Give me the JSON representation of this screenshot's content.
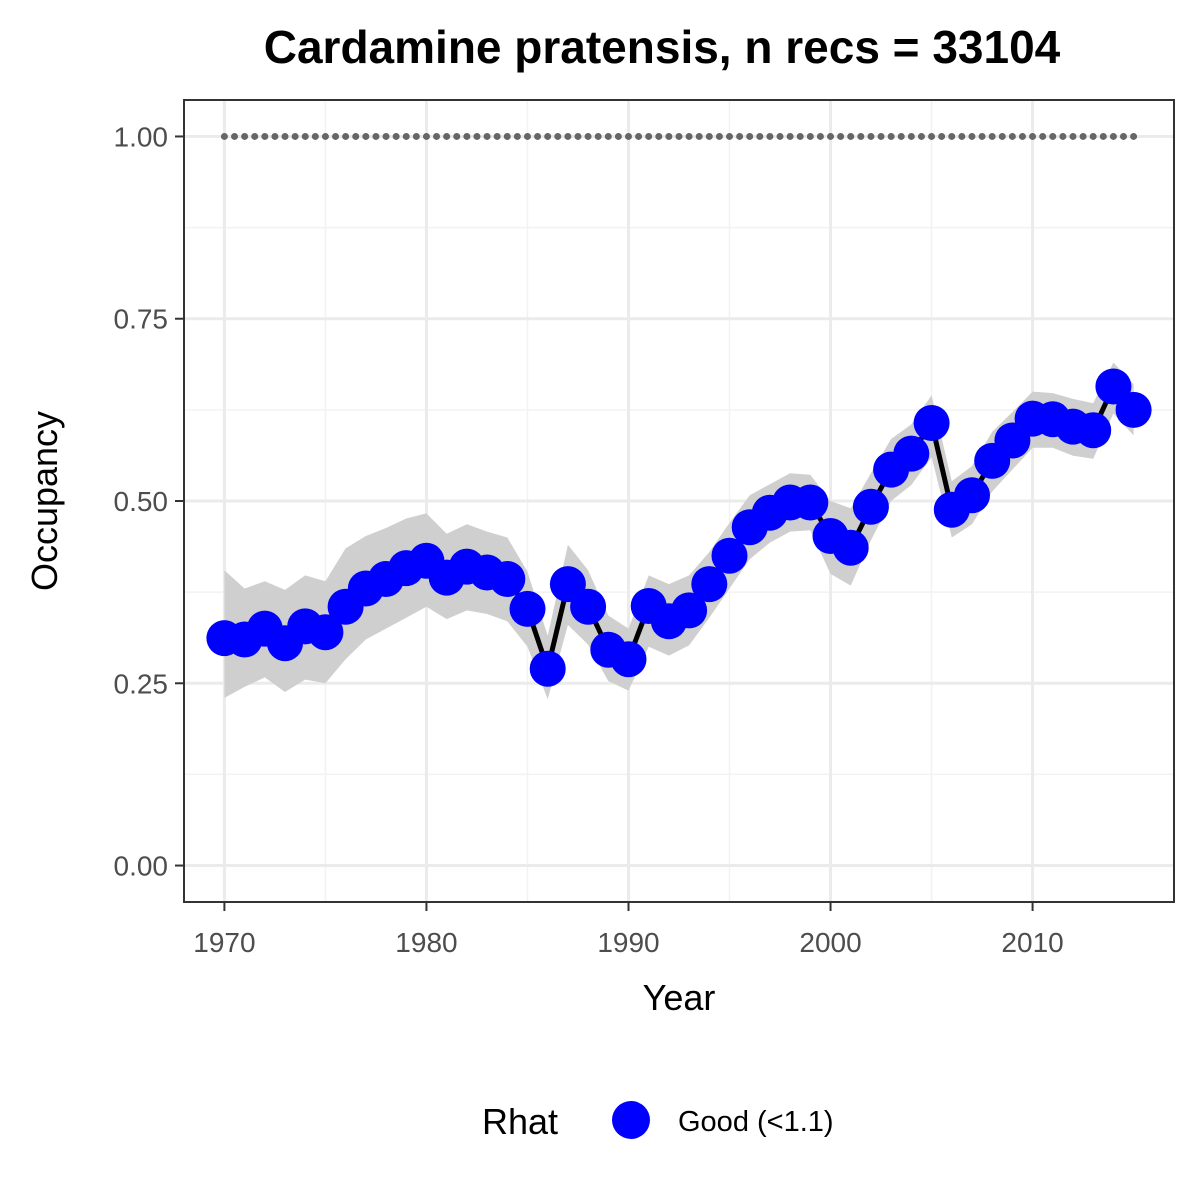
{
  "chart_data": {
    "type": "line",
    "title": "Cardamine pratensis, n recs = 33104",
    "xlabel": "Year",
    "ylabel": "Occupancy",
    "xlim": [
      1968,
      2017
    ],
    "ylim": [
      -0.05,
      1.05
    ],
    "x_ticks": [
      1970,
      1980,
      1990,
      2000,
      2010
    ],
    "x_tick_labels": [
      "1970",
      "1980",
      "1990",
      "2000",
      "2010"
    ],
    "y_ticks": [
      0,
      0.25,
      0.5,
      0.75,
      1.0
    ],
    "y_tick_labels": [
      "0.00",
      "0.25",
      "0.50",
      "0.75",
      "1.00"
    ],
    "grid": true,
    "x": [
      1970,
      1971,
      1972,
      1973,
      1974,
      1975,
      1976,
      1977,
      1978,
      1979,
      1980,
      1981,
      1982,
      1983,
      1984,
      1985,
      1986,
      1987,
      1988,
      1989,
      1990,
      1991,
      1992,
      1993,
      1994,
      1995,
      1996,
      1997,
      1998,
      1999,
      2000,
      2001,
      2002,
      2003,
      2004,
      2005,
      2006,
      2007,
      2008,
      2009,
      2010,
      2011,
      2012,
      2013,
      2014,
      2015
    ],
    "series": [
      {
        "name": "Good (<1.1)",
        "values": [
          0.312,
          0.31,
          0.325,
          0.305,
          0.328,
          0.32,
          0.355,
          0.38,
          0.393,
          0.408,
          0.418,
          0.395,
          0.41,
          0.402,
          0.393,
          0.352,
          0.27,
          0.386,
          0.355,
          0.296,
          0.283,
          0.356,
          0.335,
          0.35,
          0.386,
          0.425,
          0.464,
          0.484,
          0.498,
          0.498,
          0.452,
          0.436,
          0.492,
          0.543,
          0.565,
          0.607,
          0.488,
          0.508,
          0.555,
          0.583,
          0.613,
          0.612,
          0.602,
          0.597,
          0.657,
          0.625
        ],
        "lower": [
          0.23,
          0.245,
          0.258,
          0.238,
          0.255,
          0.25,
          0.283,
          0.31,
          0.325,
          0.34,
          0.355,
          0.338,
          0.35,
          0.345,
          0.335,
          0.3,
          0.228,
          0.33,
          0.303,
          0.253,
          0.24,
          0.3,
          0.288,
          0.302,
          0.34,
          0.38,
          0.42,
          0.443,
          0.458,
          0.46,
          0.4,
          0.384,
          0.446,
          0.5,
          0.522,
          0.56,
          0.45,
          0.468,
          0.513,
          0.543,
          0.573,
          0.573,
          0.562,
          0.558,
          0.62,
          0.59
        ],
        "upper": [
          0.405,
          0.38,
          0.39,
          0.378,
          0.398,
          0.39,
          0.435,
          0.452,
          0.463,
          0.476,
          0.483,
          0.455,
          0.468,
          0.458,
          0.45,
          0.403,
          0.315,
          0.44,
          0.405,
          0.343,
          0.325,
          0.398,
          0.386,
          0.398,
          0.43,
          0.47,
          0.508,
          0.523,
          0.538,
          0.536,
          0.5,
          0.49,
          0.538,
          0.585,
          0.605,
          0.645,
          0.527,
          0.548,
          0.595,
          0.622,
          0.65,
          0.648,
          0.64,
          0.634,
          0.69,
          0.66
        ]
      }
    ],
    "reference_line": {
      "y": 1.0,
      "style": "dotted",
      "color": "#666666"
    },
    "ribbon_color": "#cfcfcf",
    "line_color": "#000000",
    "point_color": "#0000ff",
    "legend": {
      "title": "Rhat",
      "placement": "bottom",
      "labels": [
        "Good (<1.1)"
      ]
    }
  }
}
